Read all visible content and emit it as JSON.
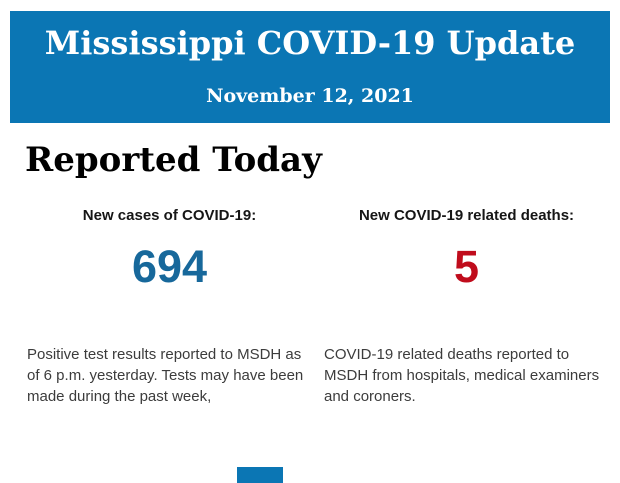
{
  "colors": {
    "page_bg": "#ffffff",
    "header_bg": "#0b76b4",
    "title_text": "#ffffff",
    "heading_text": "#000000",
    "label_text": "#161616",
    "cases_value": "#17689b",
    "deaths_value": "#c00c1c",
    "body_text": "#3c3c3c"
  },
  "header": {
    "title": "Mississippi COVID-19 Update",
    "date": "November 12, 2021"
  },
  "section": {
    "heading": "Reported Today"
  },
  "stats": [
    {
      "label": "New cases of COVID-19:",
      "value": "694",
      "description": "Positive test results reported to MSDH as\nof 6 p.m. yesterday. Tests may have been\nmade during the past week,"
    },
    {
      "label": "New COVID-19 related deaths:",
      "value": "5",
      "description": "COVID-19 related deaths reported to\nMSDH from hospitals, medical examiners\nand coroners."
    }
  ]
}
